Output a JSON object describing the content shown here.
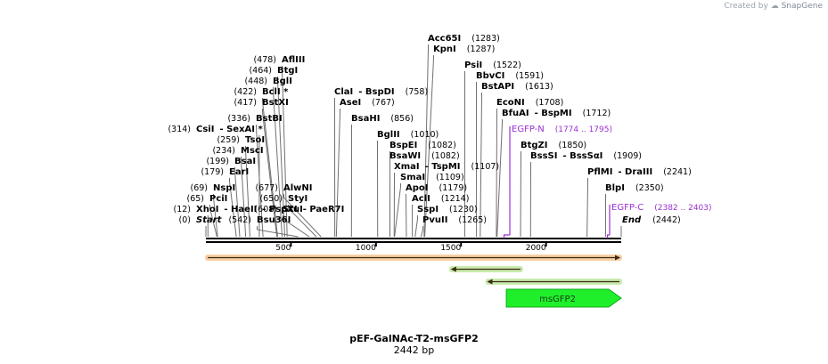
{
  "credit": {
    "prefix": "Created by",
    "brand": "SnapGene"
  },
  "plasmid": {
    "name": "pEF-GalNAc-T2-msGFP2",
    "size_label": "2442 bp",
    "length": 2442
  },
  "axis_ticks": [
    500,
    1000,
    1500,
    2000
  ],
  "enzymes": [
    {
      "name": "Start",
      "pos": 0,
      "style": "italic"
    },
    {
      "name": "XhoI",
      "pos": 12,
      "also": [
        "HaeII",
        "PspXI",
        "PaeR7I"
      ]
    },
    {
      "name": "PciI",
      "pos": 65
    },
    {
      "name": "NspI",
      "pos": 69
    },
    {
      "name": "EarI",
      "pos": 179
    },
    {
      "name": "BsaI",
      "pos": 199
    },
    {
      "name": "MscI",
      "pos": 234
    },
    {
      "name": "TsoI",
      "pos": 259
    },
    {
      "name": "CsiI",
      "pos": 314,
      "also": [
        "SexAI *"
      ]
    },
    {
      "name": "BstBI",
      "pos": 336
    },
    {
      "name": "BstXI",
      "pos": 417
    },
    {
      "name": "BclI *",
      "pos": 422
    },
    {
      "name": "BglI",
      "pos": 448
    },
    {
      "name": "BtgI",
      "pos": 464
    },
    {
      "name": "AflIII",
      "pos": 478
    },
    {
      "name": "Bsu36I",
      "pos": 542
    },
    {
      "name": "StuI",
      "pos": 608
    },
    {
      "name": "StyI",
      "pos": 650
    },
    {
      "name": "AlwNI",
      "pos": 677
    },
    {
      "name": "AseI",
      "pos": 767
    },
    {
      "name": "ClaI",
      "pos": 758,
      "also": [
        "BspDI"
      ]
    },
    {
      "name": "BsaHI",
      "pos": 856
    },
    {
      "name": "BglII",
      "pos": 1010
    },
    {
      "name": "BspEI",
      "pos": 1082
    },
    {
      "name": "BsaWI",
      "pos": 1082
    },
    {
      "name": "XmaI",
      "pos": 1107,
      "also": [
        "TspMI"
      ]
    },
    {
      "name": "SmaI",
      "pos": 1109
    },
    {
      "name": "ApoI",
      "pos": 1179
    },
    {
      "name": "AclI",
      "pos": 1214
    },
    {
      "name": "SspI",
      "pos": 1230
    },
    {
      "name": "PvuII",
      "pos": 1265
    },
    {
      "name": "Acc65I",
      "pos": 1283
    },
    {
      "name": "KpnI",
      "pos": 1287
    },
    {
      "name": "PsiI",
      "pos": 1522
    },
    {
      "name": "BbvCI",
      "pos": 1591
    },
    {
      "name": "BstAPI",
      "pos": 1613
    },
    {
      "name": "EcoNI",
      "pos": 1708
    },
    {
      "name": "BfuAI",
      "pos": 1712,
      "also": [
        "BspMI"
      ]
    },
    {
      "name": "BtgZI",
      "pos": 1850
    },
    {
      "name": "BssSI",
      "pos": 1909,
      "also": [
        "BssSαI"
      ]
    },
    {
      "name": "PflMI",
      "pos": 2241,
      "also": [
        "DraIII"
      ]
    },
    {
      "name": "BlpI",
      "pos": 2350
    },
    {
      "name": "End",
      "pos": 2442,
      "style": "italic"
    }
  ],
  "primers": [
    {
      "name": "EGFP-N",
      "range_label": "(1774 .. 1795)",
      "start": 1774,
      "end": 1795
    },
    {
      "name": "EGFP-C",
      "range_label": "(2382 .. 2403)",
      "start": 2382,
      "end": 2403
    }
  ],
  "features": [
    {
      "name": "",
      "start": 0,
      "end": 2442,
      "direction": "forward",
      "color": "#f0a85a",
      "outline": "#e08a2a"
    },
    {
      "name": "",
      "start": 1435,
      "end": 1860,
      "direction": "reverse",
      "color": "#9bd96a",
      "outline": "#6cbf3a"
    },
    {
      "name": "",
      "start": 1648,
      "end": 2442,
      "direction": "reverse",
      "color": "#9bd96a",
      "outline": "#6cbf3a"
    },
    {
      "name": "msGFP2",
      "start": 1735,
      "end": 2442,
      "direction": "forward",
      "color": "#1fef2a",
      "outline": "#14a81c"
    }
  ],
  "colors": {
    "primer": "#9b30d0",
    "backbone": "#000000",
    "label_line": "#707070"
  }
}
